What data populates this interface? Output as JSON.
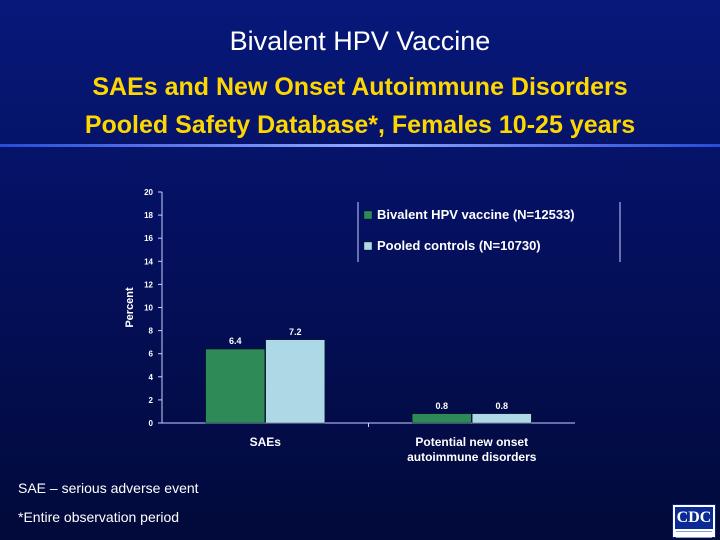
{
  "slide": {
    "title": "Bivalent HPV Vaccine",
    "subtitle_line1": "SAEs and New Onset Autoimmune Disorders",
    "subtitle_line2": "Pooled Safety Database*, Females 10-25 years",
    "footnote1": "SAE – serious adverse event",
    "footnote2": "*Entire observation period",
    "logo_text": "CDC"
  },
  "colors": {
    "background": "#04105e",
    "title": "#ffffff",
    "subtitle": "#ffd700",
    "vaccine_bar": "#2e8b57",
    "control_bar": "#add8e6"
  },
  "chart_data": {
    "type": "bar",
    "ylabel": "Percent",
    "ylim": [
      0,
      20
    ],
    "yticks": [
      0,
      2,
      4,
      6,
      8,
      10,
      12,
      14,
      16,
      18,
      20
    ],
    "categories": [
      [
        "SAEs"
      ],
      [
        "Potential new onset",
        "autoimmune disorders"
      ]
    ],
    "series": [
      {
        "name": "Bivalent HPV vaccine (N=12533)",
        "values": [
          6.4,
          0.8
        ],
        "labels": [
          "6.4",
          "0.8"
        ],
        "color": "#2e8b57"
      },
      {
        "name": "Pooled controls (N=10730)",
        "values": [
          7.2,
          0.8
        ],
        "labels": [
          "7.2",
          "0.8"
        ],
        "color": "#add8e6"
      }
    ],
    "grid": false,
    "legend_position": "top-right"
  }
}
